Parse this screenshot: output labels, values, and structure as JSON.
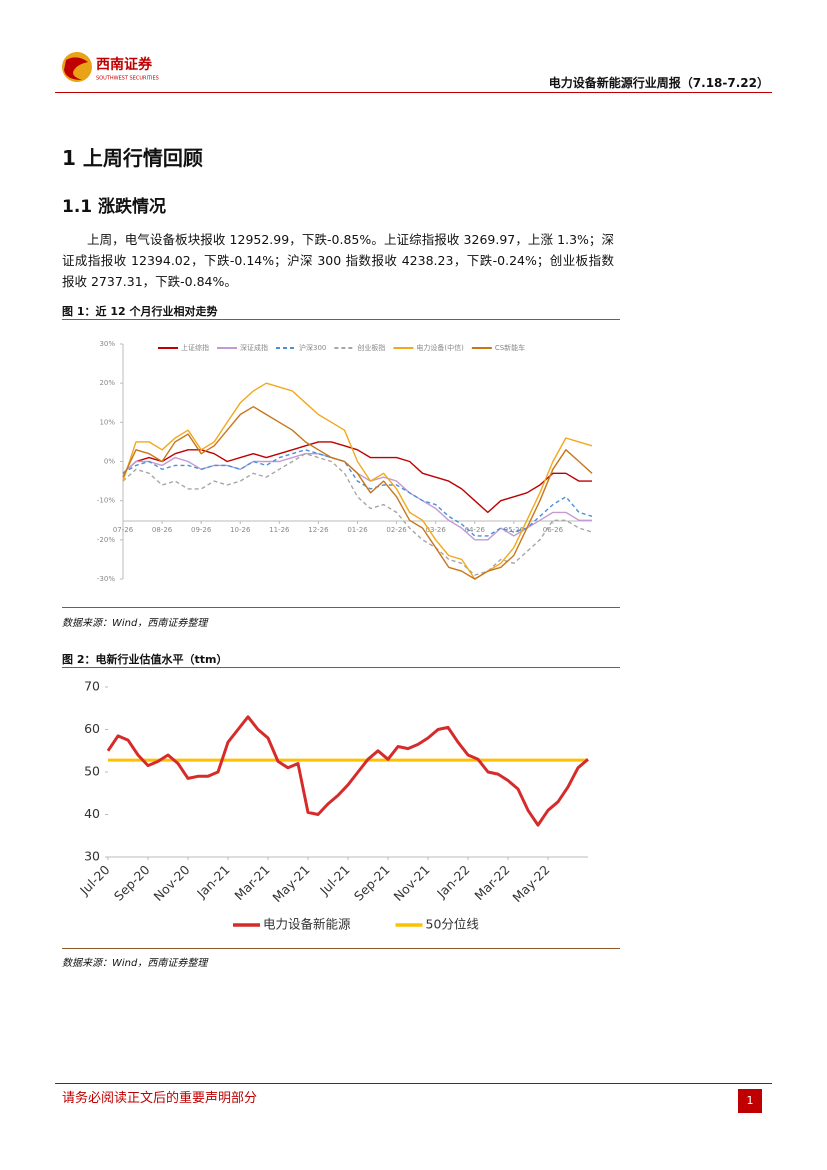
{
  "header": {
    "logo_cn": "西南证券",
    "logo_en": "SOUTHWEST SECURITIES",
    "title": "电力设备新能源行业周报（7.18-7.22）"
  },
  "section": {
    "heading": "1 上周行情回顾",
    "subheading": "1.1 涨跌情况",
    "paragraph": "上周，电气设备板块报收 12952.99，下跌-0.85%。上证综指报收 3269.97，上涨 1.3%；深证成指报收 12394.02，下跌-0.14%；沪深 300 指数报收 4238.23，下跌-0.24%；创业板指数报收 2737.31，下跌-0.84%。"
  },
  "figures": [
    {
      "caption": "图 1：近 12 个月行业相对走势",
      "source": "数据来源：Wind，西南证券整理"
    },
    {
      "caption": "图 2：电新行业估值水平（ttm）",
      "source": "数据来源：Wind，西南证券整理"
    }
  ],
  "chart_data": [
    {
      "type": "line",
      "categories": [
        "07-26",
        null,
        null,
        "08-26",
        null,
        null,
        "09-26",
        null,
        null,
        "10-26",
        null,
        null,
        "11-26",
        null,
        null,
        "12-26",
        null,
        null,
        "01-26",
        null,
        null,
        "02-26",
        null,
        null,
        "03-26",
        null,
        null,
        "04-26",
        null,
        null,
        "05-26",
        null,
        null,
        "06-26",
        null,
        null,
        null
      ],
      "ylim": [
        -30,
        30
      ],
      "yticks": [
        {
          "value": 30,
          "label": "30%"
        },
        {
          "value": 20,
          "label": "20%"
        },
        {
          "value": 10,
          "label": "10%"
        },
        {
          "value": 0,
          "label": "0%"
        },
        {
          "value": -10,
          "label": "-10%"
        },
        {
          "value": -20,
          "label": "-20%"
        },
        {
          "value": -30,
          "label": "-30%"
        }
      ],
      "grid": false,
      "series": [
        {
          "name": "上证综指",
          "color": "#c00000",
          "style": "solid",
          "values": [
            -3,
            0,
            1,
            0,
            2,
            3,
            3,
            2,
            0,
            1,
            2,
            1,
            2,
            3,
            4,
            5,
            5,
            4,
            3,
            1,
            1,
            1,
            0,
            -3,
            -4,
            -5,
            -7,
            -10,
            -13,
            -10,
            -9,
            -8,
            -6,
            -3,
            -3,
            -5,
            -5
          ]
        },
        {
          "name": "深证成指",
          "color": "#c39bd3",
          "style": "solid",
          "values": [
            -3,
            0,
            0,
            -1,
            1,
            0,
            -2,
            -1,
            -1,
            -2,
            0,
            0,
            0,
            1,
            2,
            2,
            1,
            0,
            -3,
            -5,
            -4,
            -5,
            -8,
            -10,
            -12,
            -15,
            -17,
            -20,
            -20,
            -17,
            -19,
            -17,
            -15,
            -13,
            -13,
            -15,
            -15
          ]
        },
        {
          "name": "沪深300",
          "color": "#4a90d9",
          "style": "dashed",
          "values": [
            -3,
            -1,
            0,
            -2,
            -1,
            -1,
            -2,
            -1,
            -1,
            -2,
            0,
            -1,
            1,
            2,
            3,
            2,
            1,
            0,
            -5,
            -7,
            -6,
            -6,
            -8,
            -10,
            -11,
            -14,
            -16,
            -19,
            -19,
            -17,
            -18,
            -17,
            -14,
            -11,
            -9,
            -13,
            -14
          ]
        },
        {
          "name": "创业板指",
          "color": "#a6a6a6",
          "style": "dashed",
          "values": [
            -5,
            -2,
            -3,
            -6,
            -5,
            -7,
            -7,
            -5,
            -6,
            -5,
            -3,
            -4,
            -2,
            0,
            2,
            1,
            0,
            -3,
            -9,
            -12,
            -11,
            -13,
            -17,
            -20,
            -22,
            -25,
            -26,
            -29,
            -28,
            -25,
            -26,
            -23,
            -20,
            -15,
            -15,
            -17,
            -18
          ]
        },
        {
          "name": "电力设备(中信)",
          "color": "#f2a81d",
          "style": "solid",
          "values": [
            -5,
            5,
            5,
            3,
            6,
            8,
            3,
            5,
            10,
            15,
            18,
            20,
            19,
            18,
            15,
            12,
            10,
            8,
            0,
            -5,
            -3,
            -7,
            -13,
            -15,
            -20,
            -24,
            -25,
            -30,
            -28,
            -26,
            -22,
            -15,
            -8,
            0,
            6,
            5,
            4
          ]
        },
        {
          "name": "CS新能车",
          "color": "#c8761a",
          "style": "solid",
          "values": [
            -4,
            3,
            2,
            0,
            5,
            7,
            2,
            4,
            8,
            12,
            14,
            12,
            10,
            8,
            5,
            3,
            1,
            0,
            -3,
            -8,
            -5,
            -9,
            -15,
            -17,
            -22,
            -27,
            -28,
            -30,
            -28,
            -27,
            -24,
            -17,
            -10,
            -2,
            3,
            0,
            -3
          ]
        }
      ]
    },
    {
      "type": "line",
      "categories": [
        "Jul-20",
        null,
        null,
        null,
        "Sep-20",
        null,
        null,
        null,
        "Nov-20",
        null,
        null,
        null,
        "Jan-21",
        null,
        null,
        null,
        "Mar-21",
        null,
        null,
        null,
        "May-21",
        null,
        null,
        null,
        "Jul-21",
        null,
        null,
        null,
        "Sep-21",
        null,
        null,
        null,
        "Nov-21",
        null,
        null,
        null,
        "Jan-22",
        null,
        null,
        null,
        "Mar-22",
        null,
        null,
        null,
        "May-22",
        null,
        null,
        null,
        null
      ],
      "ylim": [
        30,
        70
      ],
      "yticks": [
        30,
        40,
        50,
        60,
        70
      ],
      "grid": false,
      "series": [
        {
          "name": "电力设备新能源",
          "color": "#d62b2b",
          "style": "solid",
          "values": [
            55,
            58.5,
            57.5,
            54,
            51.5,
            52.5,
            54,
            52,
            48.5,
            49,
            49,
            50,
            57,
            60,
            63,
            60,
            58,
            52.5,
            51,
            52,
            40.5,
            40,
            42.5,
            44.5,
            47,
            50,
            53,
            55,
            53,
            56,
            55.5,
            56.5,
            58,
            60,
            60.5,
            57,
            54,
            53,
            50,
            49.5,
            48,
            46,
            41,
            37.5,
            41,
            43,
            46.5,
            51,
            53
          ]
        }
      ],
      "hline": {
        "name": "50分位线",
        "color": "#ffc000",
        "value": 52.8
      }
    }
  ],
  "footer": {
    "disclaimer": "请务必阅读正文后的重要声明部分",
    "page": 1
  }
}
